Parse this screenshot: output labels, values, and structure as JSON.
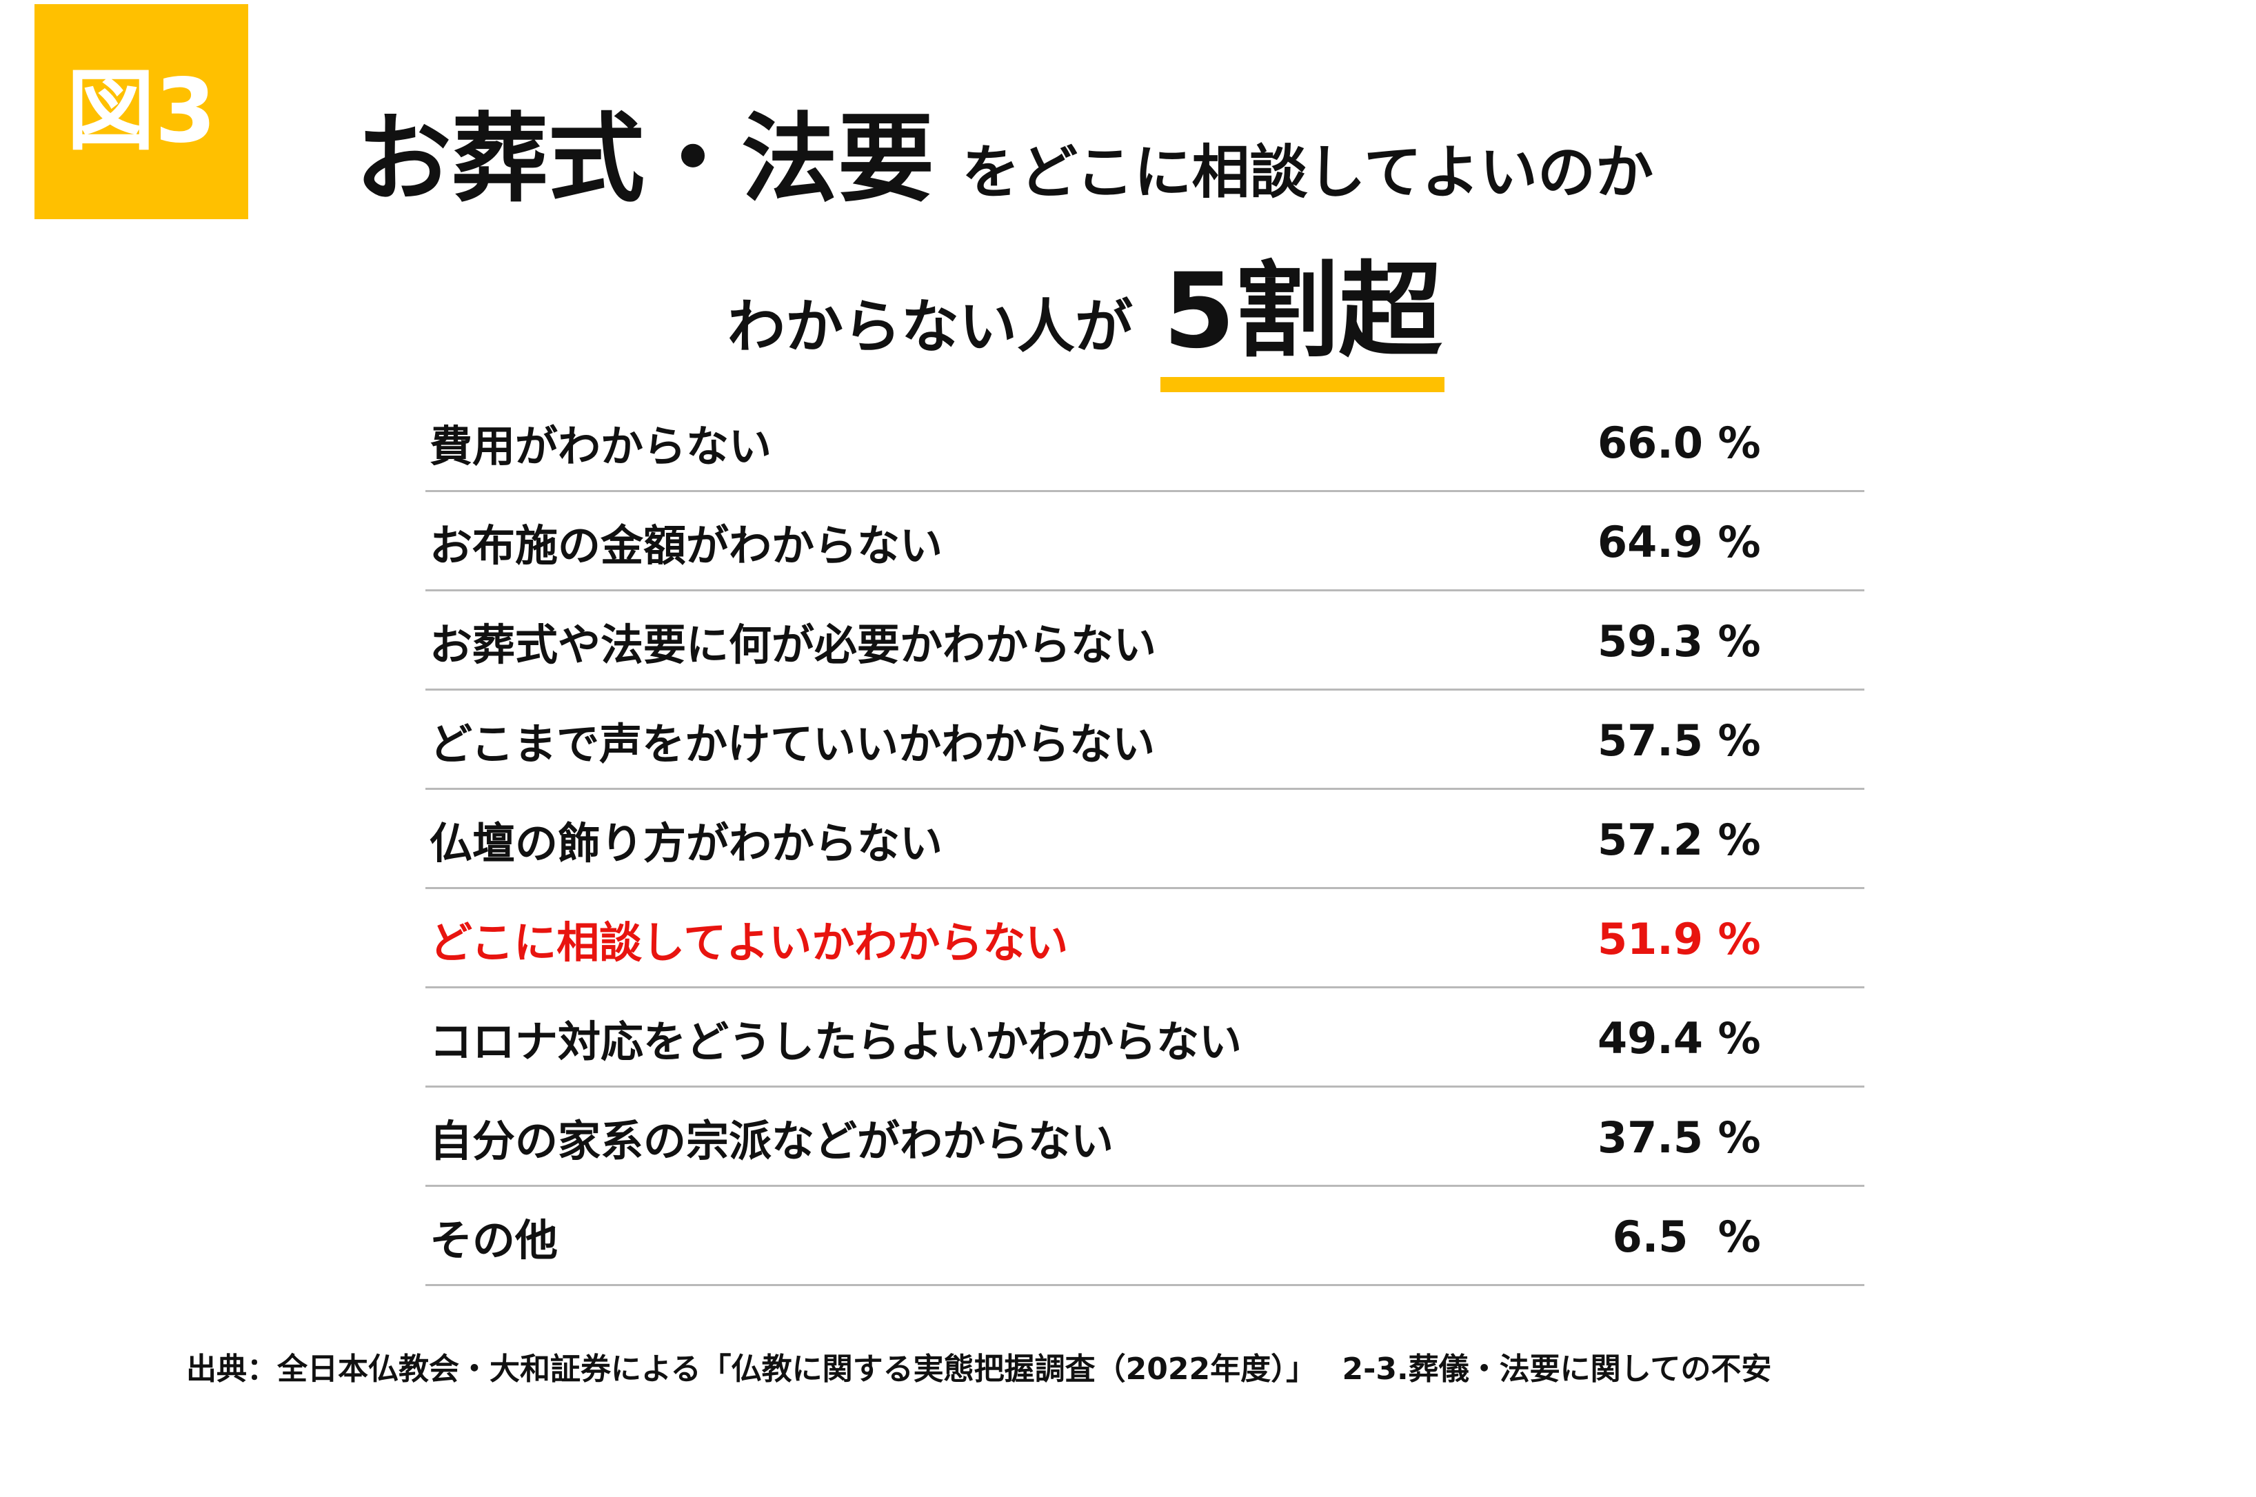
{
  "badge": {
    "label": "図3"
  },
  "title": {
    "line1_main": "お葬式・法要",
    "line1_sub": "をどこに相談してよいのか",
    "line2_sub": "わからない人が",
    "line2_highlight": "5割超"
  },
  "chart_data": {
    "type": "table",
    "rows": [
      {
        "label": "費用がわからない",
        "value": 66.0,
        "display": "66.0 %"
      },
      {
        "label": "お布施の金額がわからない",
        "value": 64.9,
        "display": "64.9 %"
      },
      {
        "label": "お葬式や法要に何が必要かわからない",
        "value": 59.3,
        "display": "59.3 %"
      },
      {
        "label": "どこまで声をかけていいかわからない",
        "value": 57.5,
        "display": "57.5 %"
      },
      {
        "label": "仏壇の飾り方がわからない",
        "value": 57.2,
        "display": "57.2 %"
      },
      {
        "label": "どこに相談してよいかわからない",
        "value": 51.9,
        "display": "51.9 %",
        "highlight": true
      },
      {
        "label": "コロナ対応をどうしたらよいかわからない",
        "value": 49.4,
        "display": "49.4 %"
      },
      {
        "label": "自分の家系の宗派などがわからない",
        "value": 37.5,
        "display": "37.5 %"
      },
      {
        "label": "その他",
        "value": 6.5,
        "display": " 6.5  %"
      }
    ],
    "highlight_color": "#E8140F"
  },
  "colors": {
    "accent": "#FFC000",
    "highlight": "#E8140F",
    "divider": "#B9B9B9"
  },
  "source": "出典：全日本仏教会・大和証券による「仏教に関する実態把握調査（2022年度）」　 2-3.葬儀・法要に関しての不安"
}
